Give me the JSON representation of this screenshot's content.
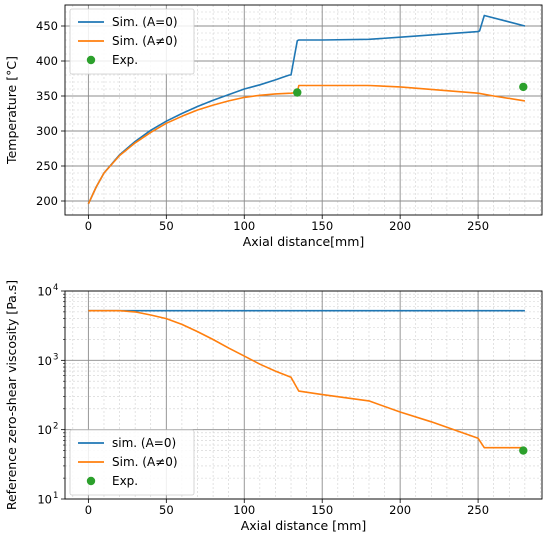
{
  "chart_data": [
    {
      "type": "line",
      "xlabel": "Axial distance[mm]",
      "ylabel": "Temperature [°C]",
      "xlim": [
        -15,
        291
      ],
      "ylim": [
        180,
        480
      ],
      "xticks": [
        0,
        50,
        100,
        150,
        200,
        250
      ],
      "yticks": [
        200,
        250,
        300,
        350,
        400,
        450
      ],
      "yscale": "linear",
      "grid": "major and minor",
      "legend_position": "top-left",
      "series": [
        {
          "name": "Sim. (A=0)",
          "kind": "line",
          "color": "#1f77b4",
          "x": [
            0,
            5,
            10,
            20,
            30,
            40,
            50,
            60,
            70,
            80,
            90,
            100,
            110,
            120,
            125,
            129,
            130,
            134,
            135,
            150,
            180,
            200,
            250,
            251,
            254,
            280
          ],
          "y": [
            196,
            220,
            240,
            266,
            285,
            301,
            314,
            325,
            335,
            344,
            352,
            360,
            366,
            373,
            377,
            380,
            380,
            429,
            430,
            430,
            431,
            434,
            442,
            443,
            465,
            450
          ]
        },
        {
          "name": "Sim. (A≠0)",
          "kind": "line",
          "color": "#ff7f0e",
          "x": [
            0,
            5,
            10,
            20,
            30,
            40,
            50,
            60,
            70,
            80,
            90,
            100,
            110,
            120,
            130,
            134,
            135,
            150,
            180,
            200,
            250,
            260,
            280
          ],
          "y": [
            196,
            220,
            240,
            265,
            283,
            298,
            311,
            321,
            330,
            337,
            343,
            348,
            351,
            353,
            354,
            355,
            365,
            365,
            365,
            363,
            354,
            350,
            343
          ]
        },
        {
          "name": "Exp.",
          "kind": "scatter",
          "color": "#2ca02c",
          "x": [
            134,
            279
          ],
          "y": [
            355,
            363
          ]
        }
      ]
    },
    {
      "type": "line",
      "xlabel": "Axial distance [mm]",
      "ylabel": "Reference zero-shear viscosity [Pa.s]",
      "xlim": [
        -15,
        291
      ],
      "ylim": [
        10,
        10000
      ],
      "xticks": [
        0,
        50,
        100,
        150,
        200,
        250
      ],
      "yticks": [
        10,
        100,
        1000,
        10000
      ],
      "yticklabels": [
        "10",
        "10",
        "10",
        "10"
      ],
      "yticklabel_exponents": [
        "1",
        "2",
        "3",
        "4"
      ],
      "yscale": "log",
      "grid": "major and minor",
      "legend_position": "bottom-left",
      "series": [
        {
          "name": "sim. (A=0)",
          "kind": "line",
          "color": "#1f77b4",
          "x": [
            0,
            280
          ],
          "y": [
            5200,
            5200
          ]
        },
        {
          "name": "Sim. (A≠0)",
          "kind": "line",
          "color": "#ff7f0e",
          "x": [
            0,
            20,
            30,
            40,
            50,
            60,
            70,
            80,
            90,
            100,
            110,
            120,
            130,
            135,
            150,
            180,
            200,
            220,
            250,
            254,
            280
          ],
          "y": [
            5200,
            5200,
            5000,
            4500,
            4000,
            3300,
            2600,
            2000,
            1500,
            1150,
            880,
            700,
            570,
            360,
            320,
            260,
            180,
            130,
            75,
            55,
            55
          ]
        },
        {
          "name": "Exp.",
          "kind": "scatter",
          "color": "#2ca02c",
          "x": [
            279
          ],
          "y": [
            50
          ]
        }
      ]
    }
  ]
}
